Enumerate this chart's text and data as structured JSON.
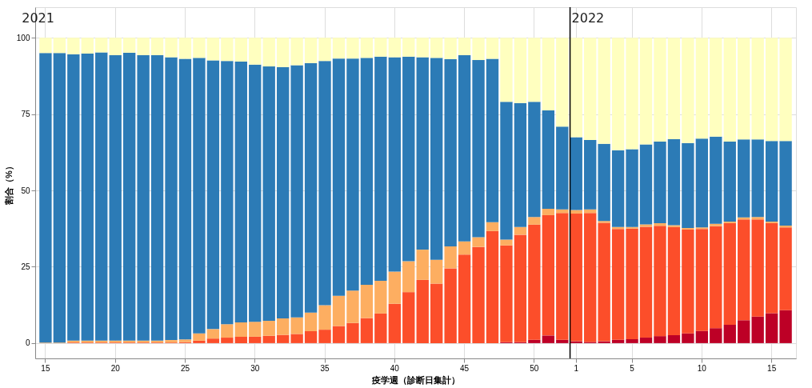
{
  "chart_data": {
    "type": "bar",
    "stacked": true,
    "xlabel": "疫学週（診断日集計）",
    "ylabel": "割合（%）",
    "categories": [
      "15",
      null,
      null,
      null,
      null,
      "20",
      null,
      null,
      null,
      null,
      "25",
      null,
      null,
      null,
      null,
      "30",
      null,
      null,
      null,
      null,
      "35",
      null,
      null,
      null,
      null,
      "40",
      null,
      null,
      null,
      null,
      "45",
      null,
      null,
      null,
      null,
      "50",
      null,
      null,
      "1",
      null,
      null,
      null,
      "5",
      null,
      null,
      null,
      null,
      "10",
      null,
      null,
      null,
      null,
      "15",
      null
    ],
    "series": [
      {
        "color": "#bd0026",
        "values": [
          0,
          0,
          0,
          0,
          0,
          0,
          0,
          0,
          0,
          0,
          0,
          0,
          0,
          0,
          0,
          0,
          0,
          0,
          0,
          0,
          0,
          0,
          0,
          0,
          0,
          0,
          0,
          0,
          0,
          0,
          0,
          0,
          0,
          0.3,
          0.3,
          1.1,
          2.5,
          1.1,
          0.6,
          0.4,
          0.6,
          1.1,
          1.3,
          1.8,
          2.3,
          2.6,
          3.2,
          4.0,
          4.9,
          6.0,
          7.5,
          8.7,
          9.8,
          10.8
        ]
      },
      {
        "color": "#fc4e2a",
        "values": [
          0,
          0,
          0.2,
          0.2,
          0.2,
          0.2,
          0.2,
          0.2,
          0.2,
          0.2,
          0.3,
          0.8,
          1.5,
          1.8,
          2.1,
          2.1,
          2.4,
          2.7,
          3.0,
          3.9,
          4.4,
          5.6,
          6.6,
          8.2,
          9.7,
          12.9,
          16.7,
          20.7,
          19.5,
          24.5,
          29.0,
          31.5,
          36.7,
          31.7,
          35.2,
          37.7,
          39.4,
          41.5,
          41.8,
          42.2,
          38.8,
          36.3,
          36.2,
          36.3,
          36.1,
          35.4,
          34.0,
          33.4,
          33.4,
          33.3,
          33.0,
          31.8,
          29.5,
          27.1
        ]
      },
      {
        "color": "#fdae61",
        "values": [
          0.2,
          0.2,
          0.6,
          0.6,
          0.6,
          0.6,
          0.6,
          0.6,
          0.6,
          0.8,
          0.9,
          2.4,
          3.1,
          4.4,
          4.7,
          4.9,
          4.9,
          5.4,
          5.4,
          6.1,
          8.0,
          9.9,
          10.6,
          10.9,
          10.7,
          10.5,
          10.1,
          9.9,
          7.8,
          7.2,
          4.3,
          3.2,
          2.9,
          1.9,
          2.5,
          2.5,
          2.1,
          1.2,
          1.2,
          1.2,
          0.6,
          0.6,
          0.5,
          0.8,
          0.9,
          0.6,
          0.5,
          0.5,
          0.8,
          0.5,
          0.7,
          0.8,
          0.5,
          0.6
        ]
      },
      {
        "color": "#2c7bb6",
        "values": [
          94.8,
          94.8,
          93.8,
          94.0,
          94.4,
          93.5,
          94.3,
          93.5,
          93.5,
          92.6,
          91.9,
          90.2,
          88.0,
          86.2,
          85.4,
          84.2,
          83.3,
          82.3,
          82.6,
          81.7,
          80.0,
          77.7,
          76.0,
          74.3,
          73.4,
          70.2,
          67.0,
          63.0,
          66.1,
          61.3,
          61.0,
          58.0,
          53.5,
          45.1,
          40.6,
          37.7,
          32.2,
          27.1,
          23.8,
          22.7,
          25.3,
          25.2,
          25.5,
          26.2,
          26.7,
          28.2,
          27.8,
          29.1,
          28.5,
          26.2,
          25.5,
          25.4,
          26.4,
          27.7
        ]
      },
      {
        "color": "#ffffbf",
        "values": [
          5.0,
          5.0,
          5.4,
          5.2,
          4.8,
          5.7,
          4.9,
          5.7,
          5.7,
          6.4,
          6.9,
          6.6,
          7.4,
          7.6,
          7.8,
          8.8,
          9.4,
          9.6,
          9.0,
          8.3,
          7.6,
          6.8,
          6.8,
          6.6,
          6.2,
          6.4,
          6.2,
          6.4,
          6.6,
          7.0,
          5.7,
          7.3,
          6.9,
          21.0,
          21.4,
          21.0,
          23.8,
          29.1,
          32.6,
          33.5,
          34.7,
          36.8,
          36.5,
          34.9,
          34.0,
          33.2,
          34.5,
          33.0,
          32.4,
          34.0,
          33.3,
          33.3,
          33.8,
          33.8
        ]
      }
    ],
    "ylim": [
      -5,
      110
    ],
    "yticks": [
      0,
      25,
      50,
      75,
      100
    ],
    "grid": true,
    "legend": false,
    "ref_lines": [
      {
        "axis": "x",
        "value": "1",
        "color": "#000000"
      }
    ],
    "annotations": [
      "2021",
      "2022"
    ]
  }
}
